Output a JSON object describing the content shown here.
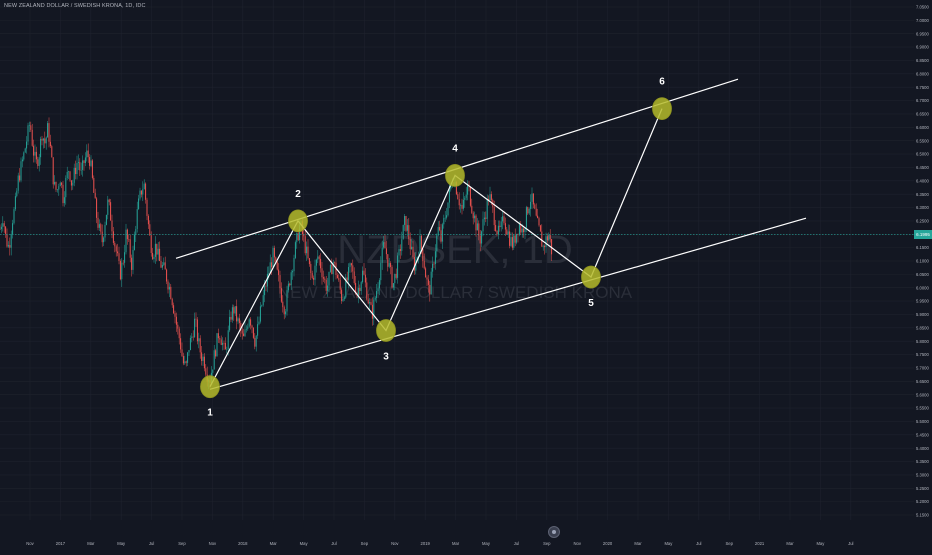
{
  "symbol_title": "NEW ZEALAND DOLLAR / SWEDISH KRONA, 1D, IDC",
  "watermark": {
    "ticker": "NZDSEK, 1D",
    "name": "NEW ZEALAND DOLLAR / SWEDISH KRONA"
  },
  "last_price": "6.1995",
  "colors": {
    "background": "#131722",
    "up": "#26a69a",
    "down": "#ef5350",
    "grid": "#1e222d",
    "channel": "#ffffff",
    "marker": "#b5bb2a",
    "price_line": "#26a69a"
  },
  "chart_data": {
    "type": "candlestick",
    "title": "NEW ZEALAND DOLLAR / SWEDISH KRONA, 1D, IDC",
    "xlabel": "",
    "ylabel": "",
    "ylim": [
      5.15,
      7.05
    ],
    "y_ticks": [
      "7.0500",
      "7.0000",
      "6.9500",
      "6.9000",
      "6.8500",
      "6.8000",
      "6.7500",
      "6.7000",
      "6.6500",
      "6.6000",
      "6.5500",
      "6.5000",
      "6.4500",
      "6.4000",
      "6.3500",
      "6.3000",
      "6.2500",
      "6.2000",
      "6.1500",
      "6.1000",
      "6.0500",
      "6.0000",
      "5.9500",
      "5.9000",
      "5.8500",
      "5.8000",
      "5.7500",
      "5.7000",
      "5.6500",
      "5.6000",
      "5.5500",
      "5.5000",
      "5.4500",
      "5.4000",
      "5.3500",
      "5.3000",
      "5.2500",
      "5.2000",
      "5.1500"
    ],
    "x_ticks": [
      "Nov",
      "2017",
      "Mar",
      "May",
      "Jul",
      "Sep",
      "Nov",
      "2018",
      "Mar",
      "May",
      "Jul",
      "Sep",
      "Nov",
      "2019",
      "Mar",
      "May",
      "Jul",
      "Sep",
      "Nov",
      "2020",
      "Mar",
      "May",
      "Jul",
      "Sep",
      "2021",
      "Mar",
      "May",
      "Jul"
    ],
    "price_path": [
      [
        0,
        6.22
      ],
      [
        3,
        6.27
      ],
      [
        6,
        6.18
      ],
      [
        9,
        6.15
      ],
      [
        12,
        6.25
      ],
      [
        15,
        6.3
      ],
      [
        18,
        6.4
      ],
      [
        21,
        6.45
      ],
      [
        24,
        6.5
      ],
      [
        27,
        6.56
      ],
      [
        30,
        6.62
      ],
      [
        33,
        6.52
      ],
      [
        36,
        6.46
      ],
      [
        39,
        6.5
      ],
      [
        42,
        6.58
      ],
      [
        45,
        6.54
      ],
      [
        48,
        6.6
      ],
      [
        51,
        6.5
      ],
      [
        54,
        6.38
      ],
      [
        57,
        6.36
      ],
      [
        60,
        6.42
      ],
      [
        63,
        6.34
      ],
      [
        66,
        6.4
      ],
      [
        69,
        6.45
      ],
      [
        72,
        6.38
      ],
      [
        75,
        6.44
      ],
      [
        78,
        6.48
      ],
      [
        81,
        6.42
      ],
      [
        84,
        6.47
      ],
      [
        87,
        6.5
      ],
      [
        90,
        6.48
      ],
      [
        93,
        6.38
      ],
      [
        96,
        6.28
      ],
      [
        99,
        6.22
      ],
      [
        102,
        6.17
      ],
      [
        105,
        6.25
      ],
      [
        108,
        6.32
      ],
      [
        111,
        6.26
      ],
      [
        114,
        6.18
      ],
      [
        117,
        6.12
      ],
      [
        120,
        6.05
      ],
      [
        123,
        6.1
      ],
      [
        126,
        6.2
      ],
      [
        129,
        6.15
      ],
      [
        132,
        6.08
      ],
      [
        135,
        6.22
      ],
      [
        138,
        6.3
      ],
      [
        141,
        6.36
      ],
      [
        144,
        6.39
      ],
      [
        147,
        6.28
      ],
      [
        150,
        6.18
      ],
      [
        153,
        6.13
      ],
      [
        156,
        6.16
      ],
      [
        159,
        6.1
      ],
      [
        162,
        6.08
      ],
      [
        165,
        6.06
      ],
      [
        168,
        6.02
      ],
      [
        171,
        5.98
      ],
      [
        174,
        5.92
      ],
      [
        177,
        5.85
      ],
      [
        180,
        5.8
      ],
      [
        183,
        5.72
      ],
      [
        186,
        5.7
      ],
      [
        189,
        5.78
      ],
      [
        192,
        5.82
      ],
      [
        195,
        5.88
      ],
      [
        198,
        5.8
      ],
      [
        201,
        5.75
      ],
      [
        204,
        5.73
      ],
      [
        207,
        5.68
      ],
      [
        210,
        5.66
      ],
      [
        213,
        5.72
      ],
      [
        216,
        5.78
      ],
      [
        219,
        5.84
      ],
      [
        222,
        5.8
      ],
      [
        225,
        5.75
      ],
      [
        228,
        5.82
      ],
      [
        231,
        5.9
      ],
      [
        234,
        5.92
      ],
      [
        237,
        5.88
      ],
      [
        240,
        5.85
      ],
      [
        243,
        5.8
      ],
      [
        246,
        5.84
      ],
      [
        249,
        5.9
      ],
      [
        252,
        5.86
      ],
      [
        255,
        5.8
      ],
      [
        258,
        5.85
      ],
      [
        261,
        5.92
      ],
      [
        264,
        5.98
      ],
      [
        267,
        6.03
      ],
      [
        270,
        6.08
      ],
      [
        273,
        6.12
      ],
      [
        276,
        6.07
      ],
      [
        279,
        6.02
      ],
      [
        282,
        5.96
      ],
      [
        285,
        5.92
      ],
      [
        288,
        5.99
      ],
      [
        291,
        6.06
      ],
      [
        294,
        6.12
      ],
      [
        297,
        6.18
      ],
      [
        300,
        6.24
      ],
      [
        303,
        6.19
      ],
      [
        306,
        6.14
      ],
      [
        309,
        6.08
      ],
      [
        312,
        6.03
      ],
      [
        315,
        6.07
      ],
      [
        318,
        6.12
      ],
      [
        321,
        6.08
      ],
      [
        324,
        6.03
      ],
      [
        327,
        6.0
      ],
      [
        330,
        6.05
      ],
      [
        333,
        6.1
      ],
      [
        336,
        6.06
      ],
      [
        339,
        6.01
      ],
      [
        342,
        5.96
      ],
      [
        345,
        6.0
      ],
      [
        348,
        6.04
      ],
      [
        351,
        6.08
      ],
      [
        354,
        6.03
      ],
      [
        357,
        5.98
      ],
      [
        360,
        6.02
      ],
      [
        363,
        6.06
      ],
      [
        366,
        6.0
      ],
      [
        369,
        5.94
      ],
      [
        372,
        5.9
      ],
      [
        375,
        5.96
      ],
      [
        378,
        6.02
      ],
      [
        381,
        6.1
      ],
      [
        384,
        6.16
      ],
      [
        387,
        6.12
      ],
      [
        390,
        6.06
      ],
      [
        393,
        6.01
      ],
      [
        396,
        6.06
      ],
      [
        399,
        6.12
      ],
      [
        402,
        6.19
      ],
      [
        405,
        6.25
      ],
      [
        408,
        6.21
      ],
      [
        411,
        6.14
      ],
      [
        414,
        6.08
      ],
      [
        417,
        6.12
      ],
      [
        420,
        6.17
      ],
      [
        423,
        6.12
      ],
      [
        426,
        6.04
      ],
      [
        429,
        5.98
      ],
      [
        432,
        6.05
      ],
      [
        435,
        6.14
      ],
      [
        438,
        6.22
      ],
      [
        441,
        6.18
      ],
      [
        444,
        6.25
      ],
      [
        447,
        6.3
      ],
      [
        450,
        6.36
      ],
      [
        453,
        6.42
      ],
      [
        456,
        6.38
      ],
      [
        459,
        6.33
      ],
      [
        462,
        6.29
      ],
      [
        465,
        6.33
      ],
      [
        468,
        6.38
      ],
      [
        471,
        6.32
      ],
      [
        474,
        6.27
      ],
      [
        477,
        6.22
      ],
      [
        480,
        6.18
      ],
      [
        483,
        6.24
      ],
      [
        486,
        6.29
      ],
      [
        489,
        6.35
      ],
      [
        492,
        6.3
      ],
      [
        495,
        6.25
      ],
      [
        498,
        6.2
      ],
      [
        501,
        6.22
      ],
      [
        504,
        6.26
      ],
      [
        507,
        6.22
      ],
      [
        510,
        6.18
      ],
      [
        513,
        6.16
      ],
      [
        516,
        6.2
      ],
      [
        519,
        6.24
      ],
      [
        522,
        6.21
      ],
      [
        525,
        6.25
      ],
      [
        528,
        6.3
      ],
      [
        531,
        6.34
      ],
      [
        534,
        6.29
      ],
      [
        537,
        6.24
      ],
      [
        540,
        6.2
      ],
      [
        543,
        6.15
      ],
      [
        546,
        6.18
      ],
      [
        549,
        6.2
      ],
      [
        552,
        6.13
      ]
    ],
    "last_price": 6.1995,
    "annotations": {
      "upper_channel": [
        [
          176,
          6.11
        ],
        [
          738,
          6.78
        ]
      ],
      "lower_channel": [
        [
          210,
          5.62
        ],
        [
          806,
          6.26
        ]
      ],
      "wave_path": [
        [
          210,
          5.63
        ],
        [
          298,
          6.25
        ],
        [
          386,
          5.84
        ],
        [
          455,
          6.42
        ],
        [
          591,
          6.04
        ],
        [
          662,
          6.67
        ]
      ],
      "wave_labels": [
        {
          "label": "1",
          "x": 210,
          "y": 5.63,
          "pos": "below"
        },
        {
          "label": "2",
          "x": 298,
          "y": 6.25,
          "pos": "above"
        },
        {
          "label": "3",
          "x": 386,
          "y": 5.84,
          "pos": "below"
        },
        {
          "label": "4",
          "x": 455,
          "y": 6.42,
          "pos": "above"
        },
        {
          "label": "5",
          "x": 591,
          "y": 6.04,
          "pos": "below"
        },
        {
          "label": "6",
          "x": 662,
          "y": 6.67,
          "pos": "above"
        }
      ]
    },
    "grid": true,
    "legend": "none"
  }
}
